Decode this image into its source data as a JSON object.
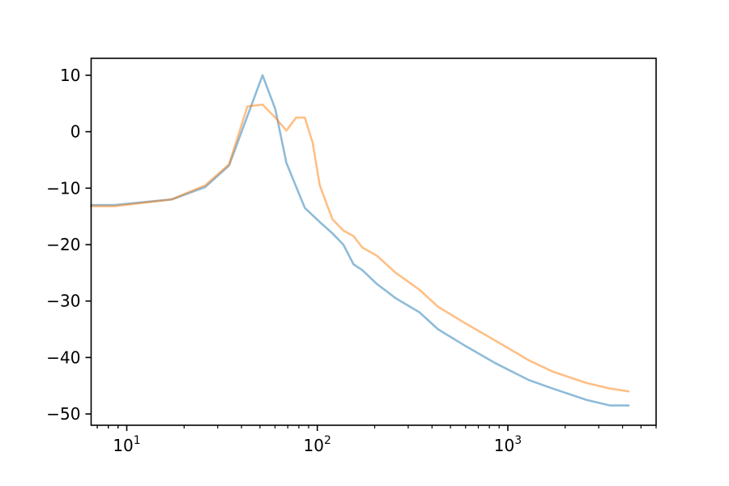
{
  "chart_data": {
    "type": "line",
    "title": "",
    "xlabel": "",
    "ylabel": "",
    "xscale": "log",
    "xlim": [
      6.5,
      6000
    ],
    "ylim": [
      -52,
      13
    ],
    "grid": false,
    "x_major_ticks": [
      {
        "value": 10,
        "base": "10",
        "exp": "1"
      },
      {
        "value": 100,
        "base": "10",
        "exp": "2"
      },
      {
        "value": 1000,
        "base": "10",
        "exp": "3"
      }
    ],
    "y_ticks": [
      {
        "value": 10,
        "label": "10"
      },
      {
        "value": 0,
        "label": "0"
      },
      {
        "value": -10,
        "label": "−10"
      },
      {
        "value": -20,
        "label": "−20"
      },
      {
        "value": -30,
        "label": "−30"
      },
      {
        "value": -40,
        "label": "−40"
      },
      {
        "value": -50,
        "label": "−50"
      }
    ],
    "series": [
      {
        "color": "#1f77b4",
        "x": [
          6.5,
          8.6,
          17.2,
          25.8,
          34.4,
          51.6,
          60.2,
          68.8,
          86,
          103,
          120,
          137,
          155,
          172,
          206,
          258,
          344,
          430,
          602,
          860,
          1290,
          1720,
          2580,
          3440,
          4300
        ],
        "y": [
          -13,
          -13,
          -12,
          -9.8,
          -6,
          10,
          4,
          -5.5,
          -13.5,
          -16,
          -18,
          -20,
          -23.5,
          -24.5,
          -27,
          -29.5,
          -32,
          -35,
          -38,
          -41,
          -44,
          -45.5,
          -47.5,
          -48.5,
          -48.5
        ]
      },
      {
        "color": "#ff7f0e",
        "x": [
          6.5,
          8.6,
          17.2,
          25.8,
          34.4,
          43,
          51.6,
          60.2,
          68.8,
          77.4,
          86,
          94.6,
          103,
          120,
          137,
          155,
          172,
          206,
          258,
          344,
          430,
          602,
          860,
          1290,
          1720,
          2580,
          3440,
          4300
        ],
        "y": [
          -13.2,
          -13.2,
          -12,
          -9.5,
          -5.8,
          4.5,
          4.8,
          2.5,
          0.2,
          2.5,
          2.5,
          -2,
          -9.5,
          -15.5,
          -17.5,
          -18.5,
          -20.5,
          -22,
          -25,
          -28,
          -31,
          -34,
          -37,
          -40.5,
          -42.5,
          -44.5,
          -45.5,
          -46
        ]
      }
    ]
  }
}
